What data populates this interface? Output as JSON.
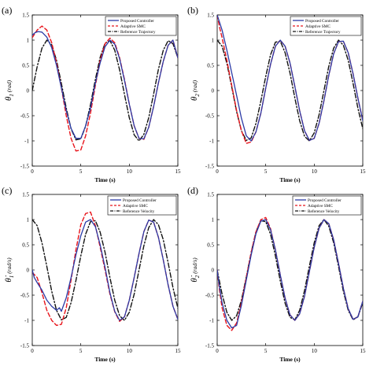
{
  "chart_data": [
    {
      "type": "line",
      "panel_label": "(a)",
      "xlabel": "Time (s)",
      "ylabel": {
        "main": "θ",
        "sub": "1",
        "unit": "(rad)"
      },
      "xlim": [
        0,
        15
      ],
      "ylim": [
        -1.5,
        1.5
      ],
      "xticks": [
        0,
        5,
        10,
        15
      ],
      "yticks": [
        -1.5,
        -1,
        -0.5,
        0,
        0.5,
        1,
        1.5
      ],
      "xtick_labels": [
        "0",
        "5",
        "10",
        "15"
      ],
      "ytick_labels": [
        "-1.5",
        "-1",
        "-0.5",
        "0",
        "0.5",
        "1",
        "1.5"
      ],
      "grid": false,
      "legend_position": "top-right",
      "series": [
        {
          "name": "Proposed Controller",
          "color": "#2b3aa6",
          "style": "solid",
          "x": [
            0,
            0.3,
            0.6,
            1.0,
            1.5,
            2.0,
            2.5,
            3.0,
            3.5,
            4.0,
            4.5,
            5.0,
            5.5,
            6.0,
            6.5,
            7.0,
            7.5,
            8.0,
            8.5,
            9.0,
            9.5,
            10.0,
            10.5,
            11.0,
            11.5,
            12.0,
            12.5,
            13.0,
            13.5,
            14.0,
            14.5,
            15.0
          ],
          "y": [
            1.1,
            1.15,
            1.17,
            1.16,
            1.06,
            0.85,
            0.5,
            0.05,
            -0.4,
            -0.75,
            -0.95,
            -0.95,
            -0.7,
            -0.35,
            0.15,
            0.55,
            0.87,
            1.0,
            0.92,
            0.63,
            0.2,
            -0.27,
            -0.7,
            -0.95,
            -0.96,
            -0.73,
            -0.32,
            0.15,
            0.58,
            0.9,
            1.0,
            0.65
          ]
        },
        {
          "name": "Adaptive SMC",
          "color": "#e8141b",
          "style": "dashed",
          "x": [
            0,
            0.5,
            1.0,
            1.5,
            2.0,
            2.5,
            3.0,
            3.5,
            4.0,
            4.5,
            5.0,
            5.5,
            6.0,
            6.5,
            7.0,
            7.5,
            8.0,
            8.5,
            9.0,
            9.5,
            10.0,
            10.5,
            11.0,
            11.5,
            12.0,
            12.5,
            13.0,
            13.5,
            14.0,
            14.5,
            15.0
          ],
          "y": [
            1.05,
            1.2,
            1.28,
            1.2,
            0.95,
            0.55,
            0.05,
            -0.5,
            -0.95,
            -1.2,
            -1.18,
            -0.9,
            -0.45,
            0.1,
            0.6,
            0.93,
            1.04,
            0.95,
            0.65,
            0.22,
            -0.27,
            -0.7,
            -0.95,
            -0.97,
            -0.73,
            -0.32,
            0.15,
            0.58,
            0.9,
            1.0,
            0.65
          ]
        },
        {
          "name": "Reference Trajectory",
          "color": "#111111",
          "style": "dashdot",
          "x": [
            0,
            0.5,
            1.0,
            1.5,
            2.0,
            2.5,
            3.0,
            3.5,
            4.0,
            4.5,
            5.0,
            5.5,
            6.0,
            6.5,
            7.0,
            7.5,
            8.0,
            8.5,
            9.0,
            9.5,
            10.0,
            10.5,
            11.0,
            11.5,
            12.0,
            12.5,
            13.0,
            13.5,
            14.0,
            14.5,
            15.0
          ],
          "y": [
            0,
            0.47,
            0.84,
            1.0,
            0.91,
            0.6,
            0.14,
            -0.35,
            -0.76,
            -0.98,
            -0.96,
            -0.71,
            -0.28,
            0.22,
            0.66,
            0.94,
            0.99,
            0.8,
            0.41,
            -0.08,
            -0.54,
            -0.88,
            -1.0,
            -0.87,
            -0.54,
            -0.07,
            0.42,
            0.8,
            0.99,
            0.93,
            0.65
          ]
        }
      ]
    },
    {
      "type": "line",
      "panel_label": "(b)",
      "xlabel": "Time (s)",
      "ylabel": {
        "main": "θ",
        "sub": "2",
        "unit": "(rad)"
      },
      "xlim": [
        0,
        15
      ],
      "ylim": [
        -1.5,
        1.5
      ],
      "xticks": [
        0,
        5,
        10,
        15
      ],
      "yticks": [
        -1.5,
        -1,
        -0.5,
        0,
        0.5,
        1,
        1.5
      ],
      "xtick_labels": [
        "0",
        "5",
        "10",
        "15"
      ],
      "ytick_labels": [
        "-1.5",
        "-1",
        "-0.5",
        "0",
        "0.5",
        "1",
        "1.5"
      ],
      "grid": false,
      "legend_position": "top-right",
      "series": [
        {
          "name": "Proposed Controller",
          "color": "#2b3aa6",
          "style": "solid",
          "x": [
            0,
            0.25,
            0.5,
            1.0,
            1.5,
            2.0,
            2.5,
            3.0,
            3.5,
            4.0,
            4.5,
            5.0,
            5.5,
            6.0,
            6.5,
            7.0,
            7.5,
            8.0,
            8.5,
            9.0,
            9.5,
            10.0,
            10.5,
            11.0,
            11.5,
            12.0,
            12.5,
            13.0,
            13.5,
            14.0,
            14.5,
            15.0
          ],
          "y": [
            1.5,
            1.35,
            1.2,
            0.8,
            0.35,
            -0.1,
            -0.55,
            -0.9,
            -1.0,
            -0.82,
            -0.45,
            0.05,
            0.52,
            0.88,
            1.0,
            0.88,
            0.55,
            0.08,
            -0.4,
            -0.8,
            -0.99,
            -0.95,
            -0.65,
            -0.2,
            0.3,
            0.73,
            0.97,
            0.98,
            0.75,
            0.33,
            -0.15,
            -0.6
          ]
        },
        {
          "name": "Adaptive SMC",
          "color": "#e8141b",
          "style": "dashed",
          "x": [
            0,
            0.25,
            0.5,
            1.0,
            1.5,
            2.0,
            2.5,
            3.0,
            3.5,
            4.0,
            4.5,
            5.0,
            5.5,
            6.0,
            6.5,
            7.0,
            7.5,
            8.0,
            8.5,
            9.0,
            9.5,
            10.0,
            10.5,
            11.0,
            11.5,
            12.0,
            12.5,
            13.0,
            13.5,
            14.0,
            14.5,
            15.0
          ],
          "y": [
            1.5,
            1.25,
            1.05,
            0.6,
            0.1,
            -0.4,
            -0.8,
            -1.05,
            -1.02,
            -0.82,
            -0.45,
            0.05,
            0.52,
            0.88,
            1.0,
            0.88,
            0.55,
            0.08,
            -0.4,
            -0.8,
            -0.99,
            -0.95,
            -0.65,
            -0.2,
            0.3,
            0.73,
            0.97,
            0.98,
            0.75,
            0.33,
            -0.15,
            -0.6
          ]
        },
        {
          "name": "Reference Trajectory",
          "color": "#111111",
          "style": "dashdot",
          "x": [
            0,
            0.5,
            1.0,
            1.5,
            2.0,
            2.5,
            3.0,
            3.5,
            4.0,
            4.5,
            5.0,
            5.5,
            6.0,
            6.5,
            7.0,
            7.5,
            8.0,
            8.5,
            9.0,
            9.5,
            10.0,
            10.5,
            11.0,
            11.5,
            12.0,
            12.5,
            13.0,
            13.5,
            14.0,
            14.5,
            15.0
          ],
          "y": [
            1.0,
            0.88,
            0.54,
            0.07,
            -0.42,
            -0.8,
            -0.99,
            -0.94,
            -0.65,
            -0.21,
            0.28,
            0.71,
            0.96,
            0.98,
            0.75,
            0.35,
            -0.15,
            -0.6,
            -0.91,
            -1.0,
            -0.84,
            -0.48,
            0.0,
            0.48,
            0.84,
            1.0,
            0.9,
            0.6,
            0.14,
            -0.35,
            -0.76
          ]
        }
      ]
    },
    {
      "type": "line",
      "panel_label": "(c)",
      "xlabel": "Time (s)",
      "ylabel": {
        "main": "θ̇",
        "sub": "1",
        "unit": "(rad/s)"
      },
      "xlim": [
        0,
        15
      ],
      "ylim": [
        -1.5,
        1.5
      ],
      "xticks": [
        0,
        5,
        10,
        15
      ],
      "yticks": [
        -1.5,
        -1,
        -0.5,
        0,
        0.5,
        1,
        1.5
      ],
      "xtick_labels": [
        "0",
        "5",
        "10",
        "15"
      ],
      "ytick_labels": [
        "-1.5",
        "-1",
        "-0.5",
        "0",
        "0.5",
        "1",
        "1.5"
      ],
      "grid": false,
      "legend_position": "top-right",
      "series": [
        {
          "name": "Proposed Controller",
          "color": "#2b3aa6",
          "style": "solid",
          "x": [
            0,
            0.2,
            0.5,
            1.0,
            1.5,
            2.0,
            2.5,
            2.8,
            3.0,
            3.5,
            4.0,
            4.5,
            5.0,
            5.5,
            6.0,
            6.5,
            7.0,
            7.5,
            8.0,
            8.5,
            9.0,
            9.5,
            10.0,
            10.5,
            11.0,
            11.5,
            12.0,
            12.5,
            13.0,
            13.5,
            14.0,
            14.5,
            15.0
          ],
          "y": [
            0.0,
            -0.15,
            -0.25,
            -0.4,
            -0.6,
            -0.72,
            -0.8,
            -0.75,
            -0.82,
            -0.55,
            -0.15,
            0.3,
            0.68,
            0.95,
            1.0,
            0.86,
            0.5,
            0.05,
            -0.45,
            -0.82,
            -1.0,
            -0.93,
            -0.6,
            -0.15,
            0.33,
            0.76,
            0.99,
            0.95,
            0.65,
            0.2,
            -0.3,
            -0.72,
            -0.98
          ]
        },
        {
          "name": "Adaptive SMC",
          "color": "#e8141b",
          "style": "dashed",
          "x": [
            0,
            0.5,
            1.0,
            1.5,
            2.0,
            2.5,
            3.0,
            3.5,
            4.0,
            4.5,
            5.0,
            5.5,
            6.0,
            6.5,
            7.0,
            7.5,
            8.0,
            8.5,
            9.0,
            9.5,
            10.0,
            10.5,
            11.0,
            11.5,
            12.0,
            12.5,
            13.0,
            13.5,
            14.0,
            14.5,
            15.0
          ],
          "y": [
            -0.05,
            -0.15,
            -0.45,
            -0.8,
            -1.0,
            -1.1,
            -1.08,
            -0.75,
            -0.2,
            0.4,
            0.9,
            1.12,
            1.15,
            0.88,
            0.45,
            0.0,
            -0.48,
            -0.83,
            -1.02,
            -0.93,
            -0.6,
            -0.15,
            0.33,
            0.76,
            0.99,
            0.95,
            0.65,
            0.2,
            -0.3,
            -0.72,
            -0.98
          ]
        },
        {
          "name": "Reference Velocity",
          "color": "#111111",
          "style": "dashdot",
          "x": [
            0,
            0.5,
            1.0,
            1.5,
            2.0,
            2.5,
            3.0,
            3.5,
            4.0,
            4.5,
            5.0,
            5.5,
            6.0,
            6.5,
            7.0,
            7.5,
            8.0,
            8.5,
            9.0,
            9.5,
            10.0,
            10.5,
            11.0,
            11.5,
            12.0,
            12.5,
            13.0,
            13.5,
            14.0,
            14.5,
            15.0
          ],
          "y": [
            1.0,
            0.88,
            0.54,
            0.07,
            -0.42,
            -0.8,
            -0.99,
            -0.94,
            -0.65,
            -0.21,
            0.28,
            0.71,
            0.96,
            0.98,
            0.75,
            0.35,
            -0.15,
            -0.6,
            -0.91,
            -1.0,
            -0.84,
            -0.48,
            0.0,
            0.48,
            0.84,
            1.0,
            0.9,
            0.6,
            0.14,
            -0.35,
            -0.76
          ]
        }
      ]
    },
    {
      "type": "line",
      "panel_label": "(d)",
      "xlabel": "Time (s)",
      "ylabel": {
        "main": "θ̇",
        "sub": "2",
        "unit": "(rad/s)"
      },
      "xlim": [
        0,
        15
      ],
      "ylim": [
        -1.5,
        1.5
      ],
      "xticks": [
        0,
        5,
        10,
        15
      ],
      "yticks": [
        -1.5,
        -1,
        -0.5,
        0,
        0.5,
        1,
        1.5
      ],
      "xtick_labels": [
        "0",
        "5",
        "10",
        "15"
      ],
      "ytick_labels": [
        "-1.5",
        "-1",
        "-0.5",
        "0",
        "0.5",
        "1",
        "1.5"
      ],
      "grid": false,
      "legend_position": "top-right",
      "series": [
        {
          "name": "Proposed Controller",
          "color": "#2b3aa6",
          "style": "solid",
          "x": [
            0,
            0.2,
            0.5,
            1.0,
            1.5,
            2.0,
            2.5,
            3.0,
            3.5,
            4.0,
            4.5,
            5.0,
            5.5,
            6.0,
            6.5,
            7.0,
            7.5,
            8.0,
            8.5,
            9.0,
            9.5,
            10.0,
            10.5,
            11.0,
            11.5,
            12.0,
            12.5,
            13.0,
            13.5,
            14.0,
            14.5,
            15.0
          ],
          "y": [
            0.0,
            -0.3,
            -0.65,
            -1.0,
            -1.15,
            -1.1,
            -0.7,
            -0.2,
            0.3,
            0.72,
            0.97,
            1.0,
            0.8,
            0.4,
            -0.1,
            -0.56,
            -0.89,
            -1.0,
            -0.87,
            -0.52,
            -0.03,
            0.45,
            0.83,
            1.0,
            0.92,
            0.6,
            0.13,
            -0.36,
            -0.77,
            -0.98,
            -0.93,
            -0.62
          ]
        },
        {
          "name": "Adaptive SMC",
          "color": "#e8141b",
          "style": "dashed",
          "x": [
            0,
            0.2,
            0.5,
            1.0,
            1.5,
            2.0,
            2.5,
            3.0,
            3.5,
            4.0,
            4.5,
            5.0,
            5.5,
            6.0,
            6.5,
            7.0,
            7.5,
            8.0,
            8.5,
            9.0,
            9.5,
            10.0,
            10.5,
            11.0,
            11.5,
            12.0,
            12.5,
            13.0,
            13.5,
            14.0,
            14.5,
            15.0
          ],
          "y": [
            0.0,
            -0.35,
            -0.75,
            -1.1,
            -1.2,
            -1.05,
            -0.65,
            -0.15,
            0.35,
            0.76,
            1.0,
            1.04,
            0.82,
            0.4,
            -0.1,
            -0.56,
            -0.89,
            -1.0,
            -0.87,
            -0.52,
            -0.03,
            0.45,
            0.83,
            1.0,
            0.92,
            0.6,
            0.13,
            -0.36,
            -0.77,
            -0.98,
            -0.93,
            -0.62
          ]
        },
        {
          "name": "Reference Velocity",
          "color": "#111111",
          "style": "dashdot",
          "x": [
            0,
            0.5,
            1.0,
            1.5,
            2.0,
            2.5,
            3.0,
            3.5,
            4.0,
            4.5,
            5.0,
            5.5,
            6.0,
            6.5,
            7.0,
            7.5,
            8.0,
            8.5,
            9.0,
            9.5,
            10.0,
            10.5,
            11.0,
            11.5,
            12.0,
            12.5,
            13.0,
            13.5,
            14.0,
            14.5,
            15.0
          ],
          "y": [
            0.0,
            -0.48,
            -0.84,
            -1.0,
            -0.91,
            -0.6,
            -0.14,
            0.35,
            0.76,
            0.98,
            0.96,
            0.71,
            0.28,
            -0.22,
            -0.66,
            -0.94,
            -0.99,
            -0.8,
            -0.41,
            0.08,
            0.54,
            0.88,
            1.0,
            0.87,
            0.54,
            0.07,
            -0.42,
            -0.8,
            -0.99,
            -0.93,
            -0.65
          ]
        }
      ]
    }
  ]
}
